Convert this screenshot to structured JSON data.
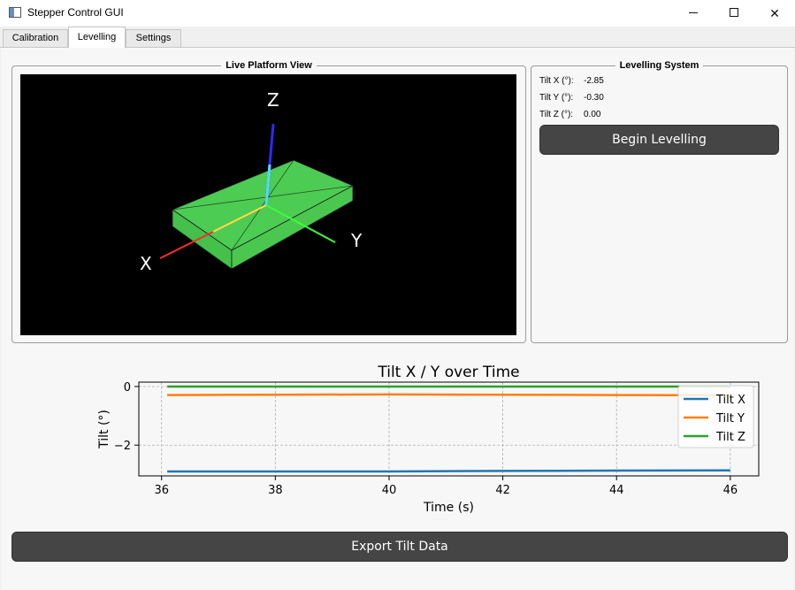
{
  "window": {
    "title": "Stepper Control GUI",
    "minimize_label": "–",
    "maximize_label": "□",
    "close_label": "✕"
  },
  "tabs": [
    "Calibration",
    "Levelling",
    "Settings"
  ],
  "active_tab": "Levelling",
  "live_view": {
    "title": "Live Platform View",
    "axis_labels": {
      "x": "X",
      "y": "Y",
      "z": "Z"
    },
    "colors": {
      "background": "#000000",
      "platform": "#4ccc52",
      "axis_x": "#ff2a2a",
      "axis_y": "#3cff3c",
      "axis_z": "#2b2bff"
    }
  },
  "levelling": {
    "title": "Levelling System",
    "readouts": [
      {
        "label": "Tilt X (°):",
        "value": "-2.85"
      },
      {
        "label": "Tilt Y (°):",
        "value": "-0.30"
      },
      {
        "label": "Tilt Z (°):",
        "value": "0.00"
      }
    ],
    "begin_button": "Begin Levelling"
  },
  "export_button": "Export Tilt Data",
  "chart_data": {
    "type": "line",
    "title": "Tilt X / Y over Time",
    "xlabel": "Time (s)",
    "ylabel": "Tilt (°)",
    "xlim": [
      35.6,
      46.5
    ],
    "ylim": [
      -3.05,
      0.15
    ],
    "xticks": [
      36,
      38,
      40,
      42,
      44,
      46
    ],
    "yticks": [
      0,
      -2
    ],
    "grid": true,
    "legend": "top-right",
    "series": [
      {
        "name": "Tilt X",
        "color": "#1f77b4",
        "x": [
          36.1,
          38,
          40,
          42,
          44,
          46
        ],
        "y": [
          -2.9,
          -2.9,
          -2.9,
          -2.88,
          -2.87,
          -2.86
        ]
      },
      {
        "name": "Tilt Y",
        "color": "#ff7f0e",
        "x": [
          36.1,
          38,
          40,
          42,
          44,
          46
        ],
        "y": [
          -0.29,
          -0.28,
          -0.27,
          -0.28,
          -0.29,
          -0.3
        ]
      },
      {
        "name": "Tilt Z",
        "color": "#2ca02c",
        "x": [
          36.1,
          38,
          40,
          42,
          44,
          46
        ],
        "y": [
          0,
          0,
          0,
          0,
          0,
          0
        ]
      }
    ]
  }
}
